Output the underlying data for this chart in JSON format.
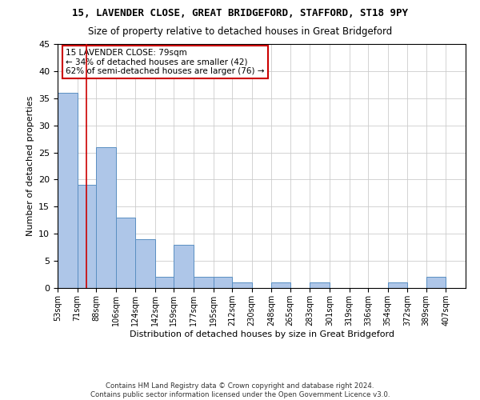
{
  "title1": "15, LAVENDER CLOSE, GREAT BRIDGEFORD, STAFFORD, ST18 9PY",
  "title2": "Size of property relative to detached houses in Great Bridgeford",
  "xlabel": "Distribution of detached houses by size in Great Bridgeford",
  "ylabel": "Number of detached properties",
  "footnote": "Contains HM Land Registry data © Crown copyright and database right 2024.\nContains public sector information licensed under the Open Government Licence v3.0.",
  "bin_labels": [
    "53sqm",
    "71sqm",
    "88sqm",
    "106sqm",
    "124sqm",
    "142sqm",
    "159sqm",
    "177sqm",
    "195sqm",
    "212sqm",
    "230sqm",
    "248sqm",
    "265sqm",
    "283sqm",
    "301sqm",
    "319sqm",
    "336sqm",
    "354sqm",
    "372sqm",
    "389sqm",
    "407sqm"
  ],
  "bar_values": [
    36,
    19,
    26,
    13,
    9,
    2,
    8,
    2,
    2,
    1,
    0,
    1,
    0,
    1,
    0,
    0,
    0,
    1,
    0,
    2,
    0
  ],
  "bar_color": "#aec6e8",
  "bar_edge_color": "#5a8fc2",
  "property_line_x": 79,
  "property_line_color": "#cc0000",
  "annotation_text": "15 LAVENDER CLOSE: 79sqm\n← 34% of detached houses are smaller (42)\n62% of semi-detached houses are larger (76) →",
  "annotation_box_color": "#ffffff",
  "annotation_box_edge_color": "#cc0000",
  "ylim": [
    0,
    45
  ],
  "yticks": [
    0,
    5,
    10,
    15,
    20,
    25,
    30,
    35,
    40,
    45
  ],
  "bin_edges": [
    53,
    71,
    88,
    106,
    124,
    142,
    159,
    177,
    195,
    212,
    230,
    248,
    265,
    283,
    301,
    319,
    336,
    354,
    372,
    389,
    407
  ],
  "background_color": "#ffffff",
  "grid_color": "#cccccc"
}
